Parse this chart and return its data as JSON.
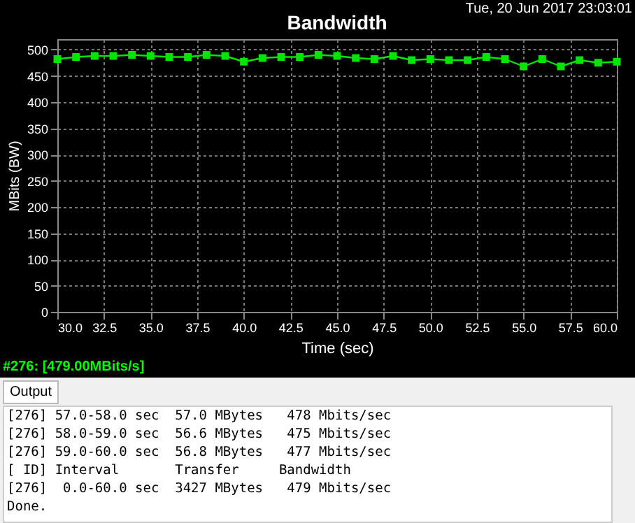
{
  "chart_data": {
    "type": "line",
    "title": "Bandwidth",
    "xlabel": "Time (sec)",
    "ylabel": "MBits (BW)",
    "x": [
      30,
      31,
      32,
      33,
      34,
      35,
      36,
      37,
      38,
      39,
      40,
      41,
      42,
      43,
      44,
      45,
      46,
      47,
      48,
      49,
      50,
      51,
      52,
      53,
      54,
      55,
      56,
      57,
      58,
      59,
      60
    ],
    "series": [
      {
        "color": "#00e600",
        "values": [
          482,
          486,
          488,
          488,
          490,
          488,
          486,
          486,
          490,
          488,
          477,
          484,
          486,
          486,
          490,
          488,
          484,
          482,
          488,
          480,
          482,
          480,
          480,
          486,
          482,
          468,
          482,
          468,
          480,
          475,
          477
        ]
      }
    ],
    "xlim": [
      30,
      60
    ],
    "xticks": [
      {
        "value": 30,
        "label": "30.0"
      },
      {
        "value": 32.5,
        "label": "32.5"
      },
      {
        "value": 35,
        "label": "35.0"
      },
      {
        "value": 37.5,
        "label": "37.5"
      },
      {
        "value": 40,
        "label": "40.0"
      },
      {
        "value": 42.5,
        "label": "42.5"
      },
      {
        "value": 45,
        "label": "45.0"
      },
      {
        "value": 47.5,
        "label": "47.5"
      },
      {
        "value": 50,
        "label": "50.0"
      },
      {
        "value": 52.5,
        "label": "52.5"
      },
      {
        "value": 55,
        "label": "55.0"
      },
      {
        "value": 57.5,
        "label": "57.5"
      },
      {
        "value": 60,
        "label": "60.0"
      }
    ],
    "ylim": [
      0,
      520
    ],
    "yticks": [
      0,
      50,
      100,
      150,
      200,
      250,
      300,
      350,
      400,
      450,
      500
    ],
    "grid": true,
    "marker": "square",
    "annotations": [
      "Tue, 20 Jun 2017 23:03:01",
      "#276: [479.00MBits/s]",
      "Output",
      "[276] 57.0-58.0 sec  57.0 MBytes   478 Mbits/sec",
      "[276] 58.0-59.0 sec  56.6 MBytes   475 Mbits/sec",
      "[276] 59.0-60.0 sec  56.8 MBytes   477 Mbits/sec",
      "[ ID] Interval       Transfer     Bandwidth",
      "[276]  0.0-60.0 sec  3427 MBytes   479 Mbits/sec",
      "Done."
    ]
  }
}
